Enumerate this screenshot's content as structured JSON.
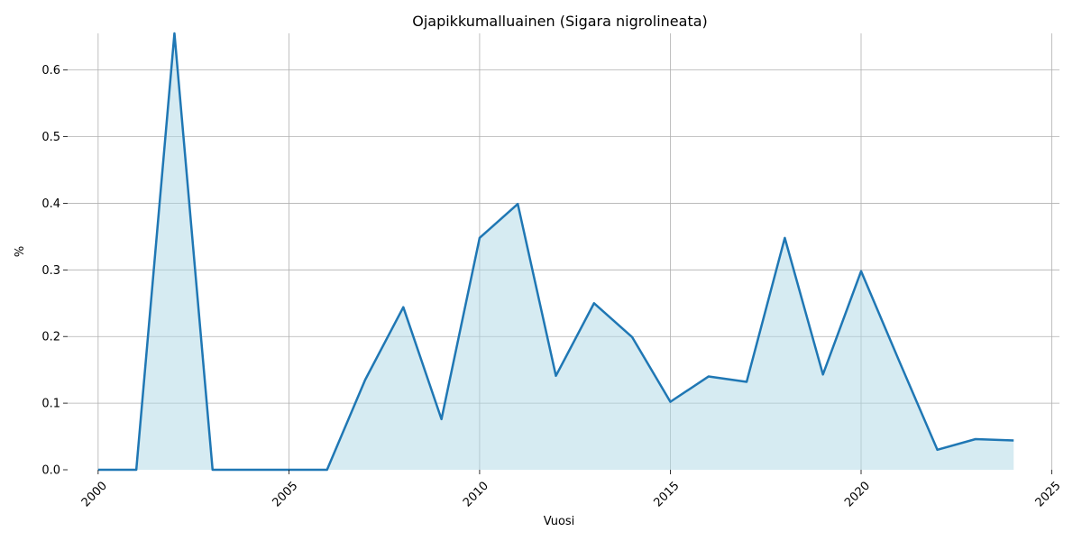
{
  "chart_data": {
    "type": "area",
    "title": "Ojapikkumalluainen (Sigara nigrolineata)",
    "xlabel": "Vuosi",
    "ylabel": "%",
    "xlim": [
      1999.2,
      2025.2
    ],
    "ylim": [
      0,
      0.655
    ],
    "xticks": [
      2000,
      2005,
      2010,
      2015,
      2020,
      2025
    ],
    "yticks": [
      0.0,
      0.1,
      0.2,
      0.3,
      0.4,
      0.5,
      0.6
    ],
    "xtick_rotation": 45,
    "grid": true,
    "legend": false,
    "line_color": "#1f77b4",
    "fill_color": "#add8e6",
    "series": [
      {
        "x": [
          2000,
          2001,
          2002,
          2003,
          2004,
          2005,
          2006,
          2007,
          2008,
          2009,
          2010,
          2011,
          2012,
          2013,
          2014,
          2015,
          2016,
          2017,
          2018,
          2019,
          2020,
          2021,
          2022,
          2023,
          2024
        ],
        "values": [
          0.0,
          0.0,
          0.655,
          0.0,
          0.0,
          0.0,
          0.0,
          0.135,
          0.244,
          0.076,
          0.348,
          0.399,
          0.141,
          0.25,
          0.199,
          0.102,
          0.14,
          0.132,
          0.348,
          0.143,
          0.298,
          0.163,
          0.03,
          0.046,
          0.044
        ]
      }
    ]
  }
}
